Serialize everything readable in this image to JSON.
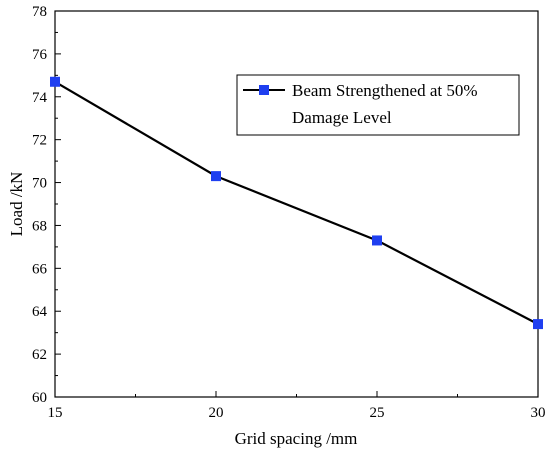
{
  "chart_data": {
    "type": "line",
    "title": "",
    "xlabel": "Grid spacing /mm",
    "ylabel": "Load /kN",
    "xlim": [
      15,
      30
    ],
    "ylim": [
      60,
      78
    ],
    "xticks": [
      15,
      20,
      25,
      30
    ],
    "yticks": [
      60,
      62,
      64,
      66,
      68,
      70,
      72,
      74,
      76,
      78
    ],
    "grid": false,
    "legend_position": "top-right",
    "series": [
      {
        "name": "Beam Strengthened at 50% Damage Level",
        "legend_lines": [
          "Beam Strengthened at 50%",
          "Damage Level"
        ],
        "x": [
          15,
          20,
          25,
          30
        ],
        "y": [
          74.7,
          70.3,
          67.3,
          63.4
        ],
        "line_color": "#000000",
        "marker_color": "#1f3ff0",
        "marker": "square"
      }
    ]
  }
}
